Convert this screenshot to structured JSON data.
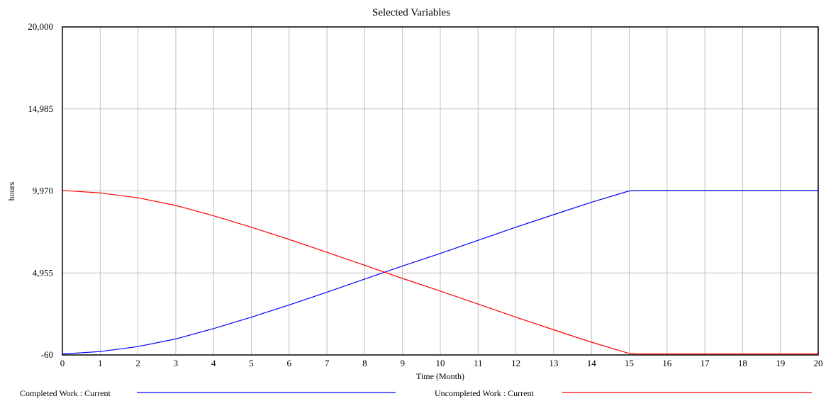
{
  "chart_data": {
    "type": "line",
    "title": "Selected Variables",
    "xlabel": "Time (Month)",
    "ylabel": "hours",
    "xlim": [
      0,
      20
    ],
    "ylim": [
      -60,
      20000
    ],
    "x_ticks": [
      0,
      1,
      2,
      3,
      4,
      5,
      6,
      7,
      8,
      9,
      10,
      11,
      12,
      13,
      14,
      15,
      16,
      17,
      18,
      19,
      20
    ],
    "y_ticks": [
      -60,
      4955,
      9970,
      14985,
      20000
    ],
    "y_tick_labels": [
      "-60",
      "4,955",
      "9,970",
      "14,985",
      "20,000"
    ],
    "grid": true,
    "legend_position": "bottom",
    "series": [
      {
        "name": "Completed Work : Current",
        "color": "#0000ff",
        "x": [
          0,
          1,
          2,
          3,
          4,
          5,
          6,
          7,
          8,
          9,
          10,
          11,
          12,
          13,
          14,
          15,
          15.2,
          16,
          17,
          18,
          19,
          20
        ],
        "values": [
          0,
          150,
          450,
          920,
          1550,
          2250,
          3000,
          3780,
          4580,
          5380,
          6150,
          6950,
          7750,
          8520,
          9280,
          9970,
          10000,
          10000,
          10000,
          10000,
          10000,
          10000
        ]
      },
      {
        "name": "Uncompleted Work : Current",
        "color": "#ff0000",
        "x": [
          0,
          1,
          2,
          3,
          4,
          5,
          6,
          7,
          8,
          9,
          10,
          11,
          12,
          13,
          14,
          15,
          15.2,
          16,
          17,
          18,
          19,
          20
        ],
        "values": [
          10000,
          9850,
          9550,
          9080,
          8450,
          7750,
          7000,
          6220,
          5420,
          4620,
          3850,
          3050,
          2250,
          1480,
          720,
          30,
          0,
          0,
          0,
          0,
          0,
          0
        ]
      }
    ]
  }
}
